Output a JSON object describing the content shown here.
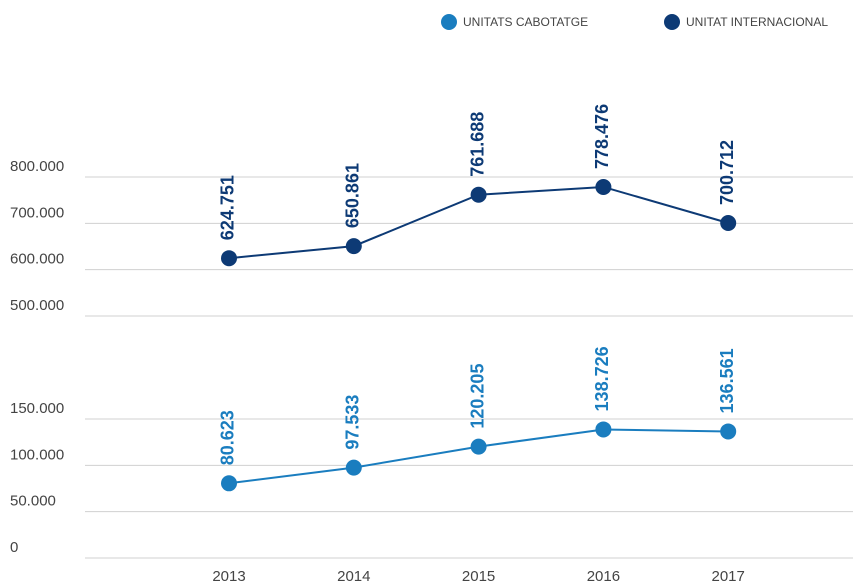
{
  "chart_data": {
    "type": "line",
    "categories": [
      "2013",
      "2014",
      "2015",
      "2016",
      "2017"
    ],
    "series": [
      {
        "name": "UNITATS CABOTATGE",
        "color": "#1a7dbf",
        "values": [
          80623,
          97533,
          120205,
          138726,
          136561
        ],
        "value_labels": [
          "80.623",
          "97.533",
          "120.205",
          "138.726",
          "136.561"
        ]
      },
      {
        "name": "UNITAT INTERNACIONAL",
        "color": "#0d3a75",
        "axis": "y2",
        "values": [
          624751,
          650861,
          761688,
          778476,
          700712
        ],
        "value_labels": [
          "624.751",
          "650.861",
          "761.688",
          "778.476",
          "700.712"
        ]
      }
    ],
    "ylim": [
      0,
      150000
    ],
    "yticks": [
      0,
      {
        "value": 50000,
        "label": "50.000"
      },
      {
        "value": 100000,
        "label": "100.000"
      },
      {
        "value": 150000,
        "label": "150.000"
      }
    ],
    "y2lim": [
      500000,
      800000
    ],
    "y2ticks": [
      {
        "value": 500000,
        "label": "500.000"
      },
      {
        "value": 600000,
        "label": "600.000"
      },
      {
        "value": 700000,
        "label": "700.000"
      },
      {
        "value": 800000,
        "label": "800.000"
      }
    ],
    "grid": true
  }
}
